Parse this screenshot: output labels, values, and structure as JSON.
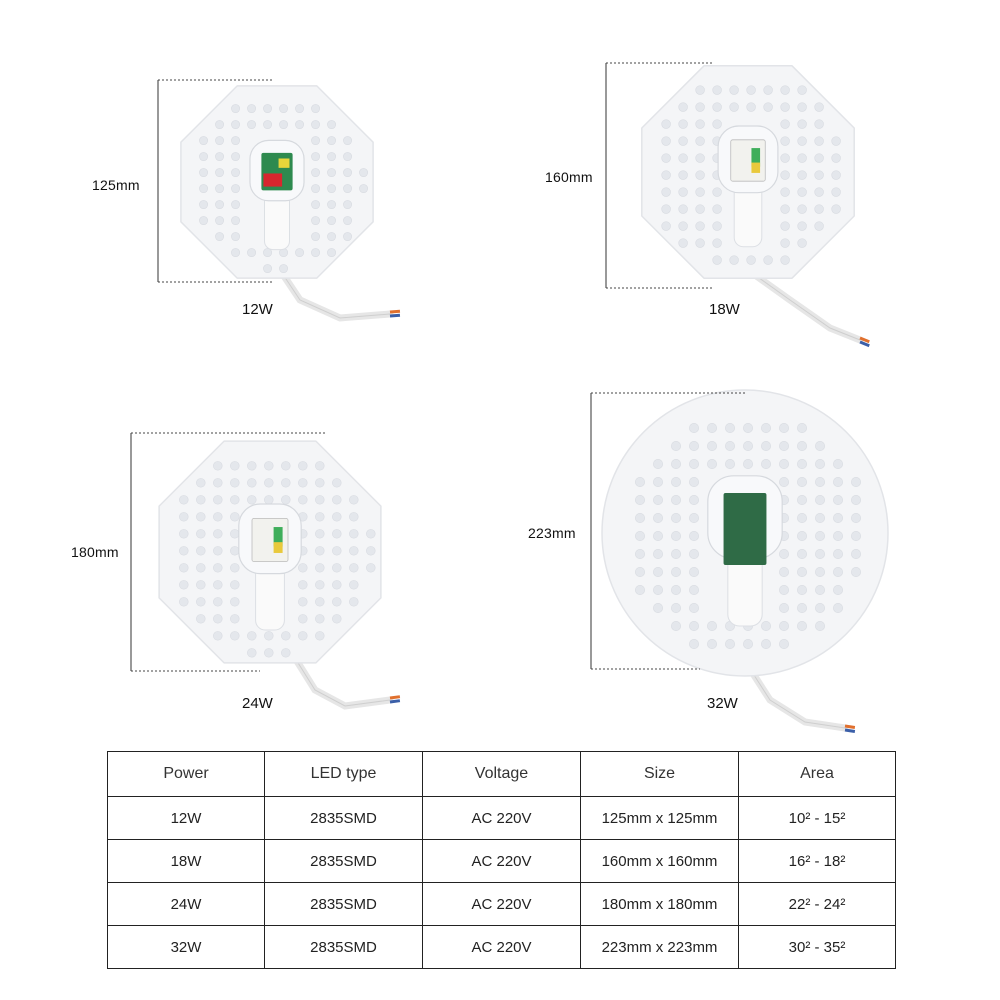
{
  "products": [
    {
      "id": "12w",
      "power_label": "12W",
      "size_label": "125mm"
    },
    {
      "id": "18w",
      "power_label": "18W",
      "size_label": "160mm"
    },
    {
      "id": "24w",
      "power_label": "24W",
      "size_label": "180mm"
    },
    {
      "id": "32w",
      "power_label": "32W",
      "size_label": "223mm"
    }
  ],
  "table": {
    "headers": [
      "Power",
      "LED type",
      "Voltage",
      "Size",
      "Area"
    ],
    "rows": [
      [
        "12W",
        "2835SMD",
        "AC 220V",
        "125mm x 125mm",
        "10² - 15²"
      ],
      [
        "18W",
        "2835SMD",
        "AC 220V",
        "160mm x 160mm",
        "16² - 18²"
      ],
      [
        "24W",
        "2835SMD",
        "AC 220V",
        "180mm x 180mm",
        "22² - 24²"
      ],
      [
        "32W",
        "2835SMD",
        "AC 220V",
        "223mm x 223mm",
        "30² - 35²"
      ]
    ]
  },
  "colors": {
    "panel": "#f4f5f7",
    "lens": "#e4e7ec",
    "driver_green": "#2f6b46",
    "wire_orange": "#e0702e",
    "wire_blue": "#3b5fa8"
  }
}
